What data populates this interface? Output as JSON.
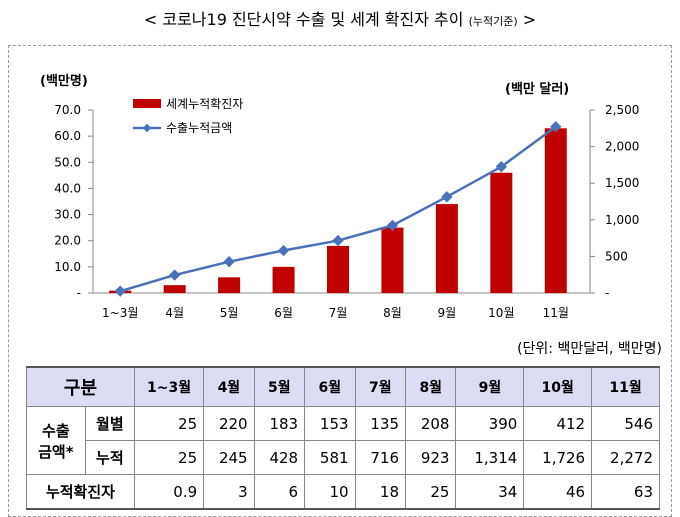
{
  "title": "< 코로나19 진단시약 수출 및 세계 확진자 추이",
  "title_suffix": "(누적기준)",
  "title_end": ">",
  "chart_data": {
    "type": "bar+line",
    "categories": [
      "1~3월",
      "4월",
      "5월",
      "6월",
      "7월",
      "8월",
      "9월",
      "10월",
      "11월"
    ],
    "series": [
      {
        "name": "세계누적확진자",
        "type": "bar",
        "axis": "left",
        "color": "#c00000",
        "values": [
          0.9,
          3,
          6,
          10,
          18,
          25,
          34,
          46,
          63
        ]
      },
      {
        "name": "수출누적금액",
        "type": "line",
        "axis": "right",
        "color": "#4a72b8",
        "values": [
          25,
          245,
          428,
          581,
          716,
          923,
          1314,
          1726,
          2272
        ]
      }
    ],
    "left_axis": {
      "label": "(백만명)",
      "range": [
        0,
        70
      ],
      "ticks": [
        "-",
        "10.0",
        "20.0",
        "30.0",
        "40.0",
        "50.0",
        "60.0",
        "70.0"
      ]
    },
    "right_axis": {
      "label": "(백만 달러)",
      "range": [
        0,
        2500
      ],
      "ticks": [
        "-",
        "500",
        "1,000",
        "1,500",
        "2,000",
        "2,500"
      ]
    },
    "legend": "top-left"
  },
  "unit_note": "(단위: 백만달러, 백만명)",
  "table": {
    "header": "구분",
    "months": [
      "1~3월",
      "4월",
      "5월",
      "6월",
      "7월",
      "8월",
      "9월",
      "10월",
      "11월"
    ],
    "group": "수출 금액*",
    "rows": [
      {
        "label": "월별",
        "values": [
          "25",
          "220",
          "183",
          "153",
          "135",
          "208",
          "390",
          "412",
          "546"
        ]
      },
      {
        "label": "누적",
        "values": [
          "25",
          "245",
          "428",
          "581",
          "716",
          "923",
          "1,314",
          "1,726",
          "2,272"
        ]
      }
    ],
    "cases_label": "누적확진자",
    "cases": [
      "0.9",
      "3",
      "6",
      "10",
      "18",
      "25",
      "34",
      "46",
      "63"
    ]
  }
}
